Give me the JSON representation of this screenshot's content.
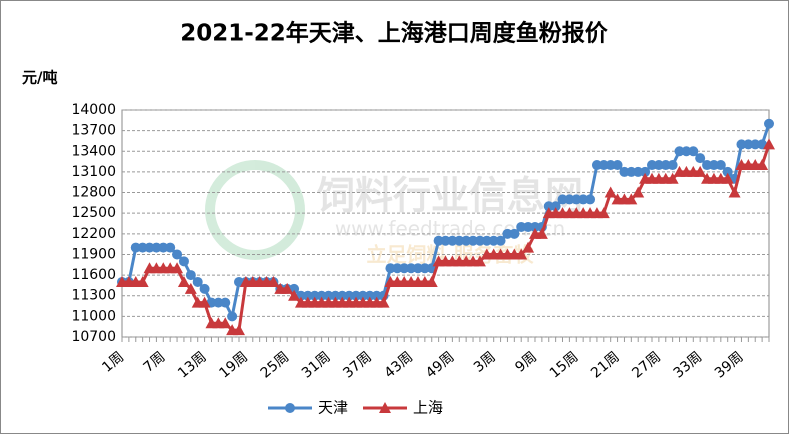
{
  "chart_data": {
    "type": "line",
    "title": "2021-22年天津、上海港口周度鱼粉报价",
    "y_axis_label": "元/吨",
    "watermark": [
      "饲料行业信息网",
      "www.feedtrade.com.cn",
      "立足饲料 服务畜牧"
    ],
    "categories": [
      "1周",
      null,
      null,
      null,
      null,
      null,
      "7周",
      null,
      null,
      null,
      null,
      null,
      "13周",
      null,
      null,
      null,
      null,
      null,
      "19周",
      null,
      null,
      null,
      null,
      null,
      "25周",
      null,
      null,
      null,
      null,
      null,
      "31周",
      null,
      null,
      null,
      null,
      null,
      "37周",
      null,
      null,
      null,
      null,
      null,
      "43周",
      null,
      null,
      null,
      null,
      null,
      "49周",
      null,
      null,
      null,
      null,
      null,
      "3周",
      null,
      null,
      null,
      null,
      null,
      "9周",
      null,
      null,
      null,
      null,
      null,
      "15周",
      null,
      null,
      null,
      null,
      null,
      "21周",
      null,
      null,
      null,
      null,
      null,
      "27周",
      null,
      null,
      null,
      null,
      null,
      "33周",
      null,
      null,
      null,
      null,
      null,
      "39周",
      null,
      null,
      null,
      null
    ],
    "series": [
      {
        "name": "天津",
        "color": "#4a86c8",
        "marker": "circle",
        "values": [
          11500,
          11500,
          12000,
          12000,
          12000,
          12000,
          12000,
          12000,
          11900,
          11800,
          11600,
          11500,
          11400,
          11200,
          11200,
          11200,
          11000,
          11500,
          11500,
          11500,
          11500,
          11500,
          11500,
          11400,
          11400,
          11400,
          11300,
          11300,
          11300,
          11300,
          11300,
          11300,
          11300,
          11300,
          11300,
          11300,
          11300,
          11300,
          11300,
          11700,
          11700,
          11700,
          11700,
          11700,
          11700,
          11700,
          12100,
          12100,
          12100,
          12100,
          12100,
          12100,
          12100,
          12100,
          12100,
          12100,
          12200,
          12200,
          12300,
          12300,
          12300,
          12300,
          12600,
          12600,
          12700,
          12700,
          12700,
          12700,
          12700,
          13200,
          13200,
          13200,
          13200,
          13100,
          13100,
          13100,
          13100,
          13200,
          13200,
          13200,
          13200,
          13400,
          13400,
          13400,
          13300,
          13200,
          13200,
          13200,
          13100,
          13000,
          13500,
          13500,
          13500,
          13500,
          13800
        ]
      },
      {
        "name": "上海",
        "color": "#c8393c",
        "marker": "triangle",
        "values": [
          11500,
          11500,
          11500,
          11500,
          11700,
          11700,
          11700,
          11700,
          11700,
          11500,
          11400,
          11200,
          11200,
          10900,
          10900,
          10900,
          10800,
          10800,
          11500,
          11500,
          11500,
          11500,
          11500,
          11400,
          11400,
          11300,
          11200,
          11200,
          11200,
          11200,
          11200,
          11200,
          11200,
          11200,
          11200,
          11200,
          11200,
          11200,
          11200,
          11500,
          11500,
          11500,
          11500,
          11500,
          11500,
          11500,
          11800,
          11800,
          11800,
          11800,
          11800,
          11800,
          11800,
          11900,
          11900,
          11900,
          11900,
          11900,
          11900,
          12000,
          12200,
          12200,
          12500,
          12500,
          12500,
          12500,
          12500,
          12500,
          12500,
          12500,
          12500,
          12800,
          12700,
          12700,
          12700,
          12800,
          13000,
          13000,
          13000,
          13000,
          13000,
          13100,
          13100,
          13100,
          13100,
          13000,
          13000,
          13000,
          13000,
          12800,
          13200,
          13200,
          13200,
          13200,
          13500
        ]
      }
    ],
    "ylim": [
      10700,
      14000
    ],
    "yticks": [
      10700,
      11000,
      11300,
      11600,
      11900,
      12200,
      12500,
      12800,
      13100,
      13400,
      13700,
      14000
    ],
    "grid": true,
    "legend": "bottom"
  }
}
